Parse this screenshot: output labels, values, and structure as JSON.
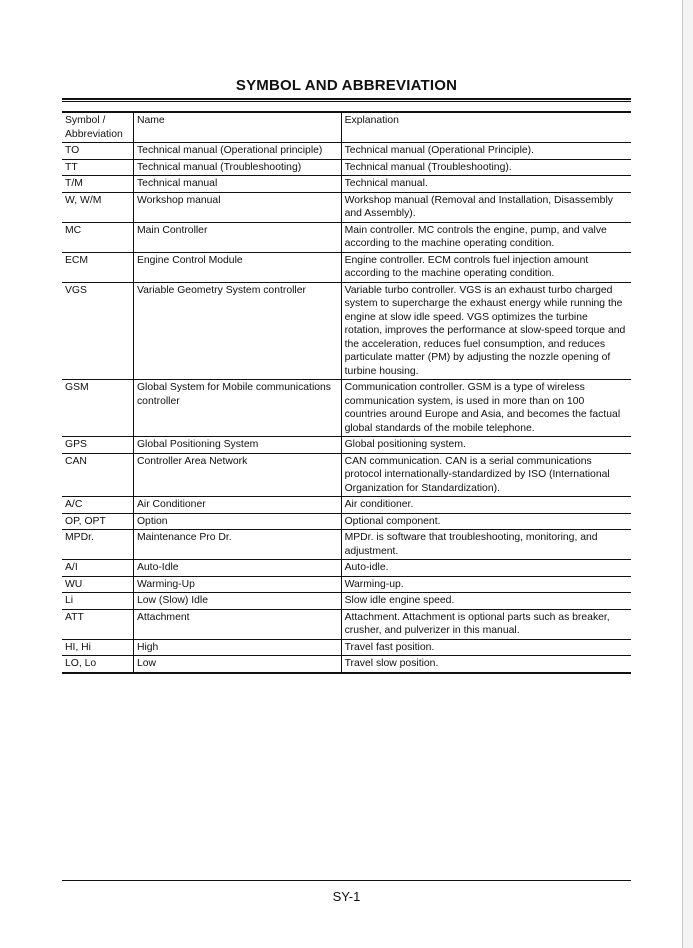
{
  "title": "SYMBOL AND ABBREVIATION",
  "headers": [
    "Symbol / Abbreviation",
    "Name",
    "Explanation"
  ],
  "rows": [
    [
      "TO",
      "Technical manual (Operational principle)",
      "Technical manual (Operational Principle)."
    ],
    [
      "TT",
      "Technical manual (Troubleshooting)",
      "Technical manual (Troubleshooting)."
    ],
    [
      "T/M",
      "Technical manual",
      "Technical manual."
    ],
    [
      "W, W/M",
      "Workshop manual",
      "Workshop manual (Removal and Installation, Disassembly and Assembly)."
    ],
    [
      "MC",
      "Main Controller",
      "Main controller. MC controls the engine, pump, and valve according to the machine operating condition."
    ],
    [
      "ECM",
      "Engine Control Module",
      "Engine controller. ECM controls fuel injection amount according to the machine operating condition."
    ],
    [
      "VGS",
      "Variable Geometry System controller",
      "Variable turbo controller. VGS is an exhaust turbo charged system to supercharge the exhaust energy while running the engine at slow idle speed. VGS optimizes the turbine rotation, improves the performance at slow-speed torque and the acceleration, reduces fuel consumption, and reduces particulate matter (PM) by adjusting the nozzle opening of turbine housing."
    ],
    [
      "GSM",
      "Global System for Mobile communications controller",
      "Communication controller. GSM is a type of wireless communication system, is used in more than on 100 countries around Europe and Asia, and becomes the factual global standards of the mobile telephone."
    ],
    [
      "GPS",
      "Global Positioning System",
      "Global positioning system."
    ],
    [
      "CAN",
      "Controller Area Network",
      "CAN communication. CAN is a serial communications protocol internationally-standardized by ISO (International Organization for Standardization)."
    ],
    [
      "A/C",
      "Air Conditioner",
      "Air conditioner."
    ],
    [
      "OP, OPT",
      "Option",
      "Optional component."
    ],
    [
      "MPDr.",
      "Maintenance Pro Dr.",
      "MPDr. is software that troubleshooting, monitoring, and adjustment."
    ],
    [
      "A/I",
      "Auto-Idle",
      "Auto-idle."
    ],
    [
      "WU",
      "Warming-Up",
      "Warming-up."
    ],
    [
      "Li",
      "Low (Slow) Idle",
      "Slow idle engine speed."
    ],
    [
      "ATT",
      "Attachment",
      "Attachment. Attachment is optional parts such as breaker, crusher, and pulverizer in this manual."
    ],
    [
      "HI, Hi",
      "High",
      "Travel fast position."
    ],
    [
      "LO, Lo",
      "Low",
      "Travel slow position."
    ]
  ],
  "page_number": "SY-1"
}
